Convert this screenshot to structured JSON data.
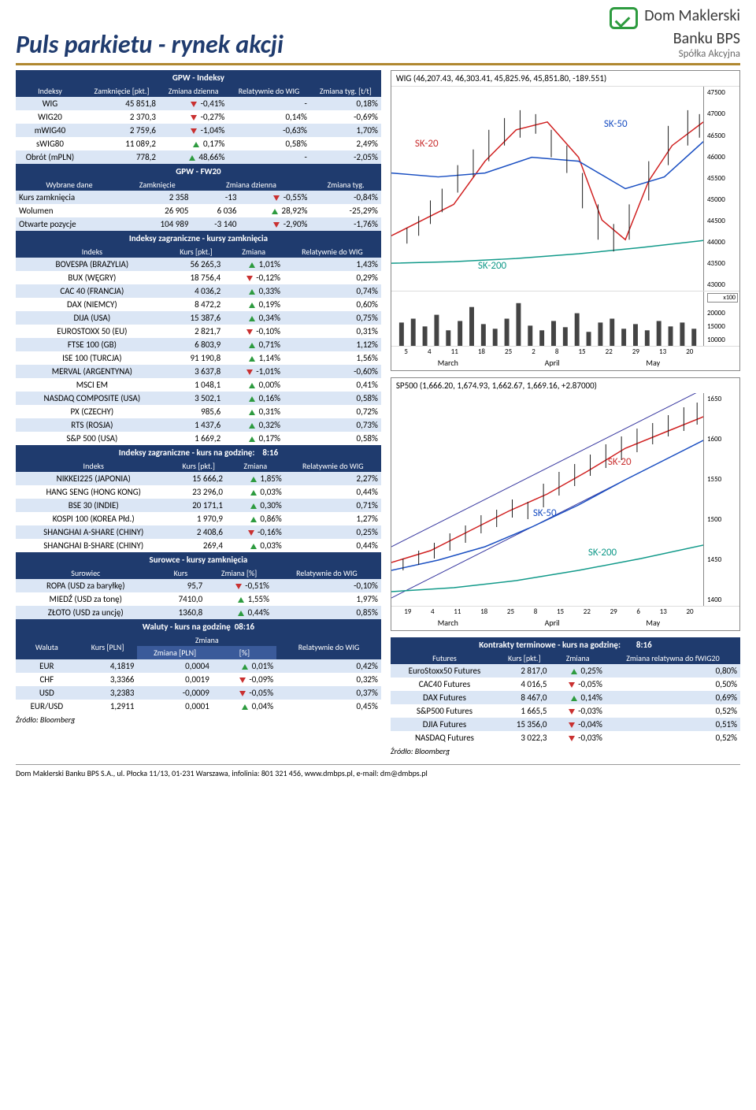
{
  "page": {
    "title": "Puls parkietu - rynek akcji",
    "logo_line1": "Dom Maklerski",
    "logo_line2": "Banku BPS",
    "logo_line3": "Spółka Akcyjna",
    "footer": "Dom Maklerski Banku BPS S.A., ul. Płocka 11/13, 01-231 Warszawa, infolinia: 801 321 456, www.dmbps.pl, e-mail: dm@dmbps.pl",
    "source": "Źródło: Bloomberg"
  },
  "colors": {
    "navy": "#1f3b6e",
    "stripe": "#dbe6f5",
    "gold": "#b08830",
    "up": "#2d9b3f",
    "dn": "#c93030"
  },
  "gpw_idx": {
    "title": "GPW - Indeksy",
    "headers": [
      "Indeksy",
      "Zamknięcie [pkt.]",
      "Zmiana dzienna",
      "Relatywnie do WIG",
      "Zmiana tyg. [t/t]"
    ],
    "rows": [
      {
        "name": "WIG",
        "close": "45 851,8",
        "dir": "dn",
        "chg": "-0,41%",
        "rel": "-",
        "wk": "0,18%"
      },
      {
        "name": "WIG20",
        "close": "2 370,3",
        "dir": "dn",
        "chg": "-0,27%",
        "rel": "0,14%",
        "wk": "-0,69%"
      },
      {
        "name": "mWIG40",
        "close": "2 759,6",
        "dir": "dn",
        "chg": "-1,04%",
        "rel": "-0,63%",
        "wk": "1,70%"
      },
      {
        "name": "sWIG80",
        "close": "11 089,2",
        "dir": "up",
        "chg": "0,17%",
        "rel": "0,58%",
        "wk": "2,49%"
      },
      {
        "name": "Obrót (mPLN)",
        "close": "778,2",
        "dir": "up",
        "chg": "48,66%",
        "rel": "-",
        "wk": "-2,05%"
      }
    ]
  },
  "fw20": {
    "title": "GPW - FW20",
    "headers": [
      "Wybrane dane",
      "Zamknięcie",
      "Zmiana dzienna",
      "",
      "Zmiana tyg."
    ],
    "rows": [
      {
        "name": "Kurs zamknięcia",
        "close": "2 358",
        "abs": "-13",
        "dir": "dn",
        "chg": "-0,55%",
        "wk": "-0,84%"
      },
      {
        "name": "Wolumen",
        "close": "26 905",
        "abs": "6 036",
        "dir": "up",
        "chg": "28,92%",
        "wk": "-25,29%"
      },
      {
        "name": "Otwarte pozycje",
        "close": "104 989",
        "abs": "-3 140",
        "dir": "dn",
        "chg": "-2,90%",
        "wk": "-1,76%"
      }
    ]
  },
  "foreign_close": {
    "title": "Indeksy zagraniczne - kursy zamknięcia",
    "headers": [
      "Indeks",
      "Kurs [pkt.]",
      "Zmiana",
      "Relatywnie do WIG"
    ],
    "rows": [
      {
        "name": "BOVESPA (BRAZYLIA)",
        "close": "56 265,3",
        "dir": "up",
        "chg": "1,01%",
        "rel": "1,43%"
      },
      {
        "name": "BUX (WĘGRY)",
        "close": "18 756,4",
        "dir": "dn",
        "chg": "-0,12%",
        "rel": "0,29%"
      },
      {
        "name": "CAC 40 (FRANCJA)",
        "close": "4 036,2",
        "dir": "up",
        "chg": "0,33%",
        "rel": "0,74%"
      },
      {
        "name": "DAX (NIEMCY)",
        "close": "8 472,2",
        "dir": "up",
        "chg": "0,19%",
        "rel": "0,60%"
      },
      {
        "name": "DIJA (USA)",
        "close": "15 387,6",
        "dir": "up",
        "chg": "0,34%",
        "rel": "0,75%"
      },
      {
        "name": "EUROSTOXX 50 (EU)",
        "close": "2 821,7",
        "dir": "dn",
        "chg": "-0,10%",
        "rel": "0,31%"
      },
      {
        "name": "FTSE 100 (GB)",
        "close": "6 803,9",
        "dir": "up",
        "chg": "0,71%",
        "rel": "1,12%"
      },
      {
        "name": "ISE 100 (TURCJA)",
        "close": "91 190,8",
        "dir": "up",
        "chg": "1,14%",
        "rel": "1,56%"
      },
      {
        "name": "MERVAL (ARGENTYNA)",
        "close": "3 637,8",
        "dir": "dn",
        "chg": "-1,01%",
        "rel": "-0,60%"
      },
      {
        "name": "MSCI EM",
        "close": "1 048,1",
        "dir": "up",
        "chg": "0,00%",
        "rel": "0,41%"
      },
      {
        "name": "NASDAQ COMPOSITE (USA)",
        "close": "3 502,1",
        "dir": "up",
        "chg": "0,16%",
        "rel": "0,58%"
      },
      {
        "name": "PX (CZECHY)",
        "close": "985,6",
        "dir": "up",
        "chg": "0,31%",
        "rel": "0,72%"
      },
      {
        "name": "RTS (ROSJA)",
        "close": "1 437,6",
        "dir": "up",
        "chg": "0,32%",
        "rel": "0,73%"
      },
      {
        "name": "S&P 500 (USA)",
        "close": "1 669,2",
        "dir": "up",
        "chg": "0,17%",
        "rel": "0,58%"
      }
    ]
  },
  "foreign_hour": {
    "title_prefix": "Indeksy zagraniczne - kurs na godzinę:",
    "time": "8:16",
    "headers": [
      "Indeks",
      "Kurs [pkt.]",
      "Zmiana",
      "Relatywnie do WIG"
    ],
    "rows": [
      {
        "name": "NIKKEI225 (JAPONIA)",
        "close": "15 666,2",
        "dir": "up",
        "chg": "1,85%",
        "rel": "2,27%"
      },
      {
        "name": "HANG SENG (HONG KONG)",
        "close": "23 296,0",
        "dir": "up",
        "chg": "0,03%",
        "rel": "0,44%"
      },
      {
        "name": "BSE 30 (INDIE)",
        "close": "20 171,1",
        "dir": "up",
        "chg": "0,30%",
        "rel": "0,71%"
      },
      {
        "name": "KOSPI 100 (KOREA Płd.)",
        "close": "1 970,9",
        "dir": "up",
        "chg": "0,86%",
        "rel": "1,27%"
      },
      {
        "name": "SHANGHAI A-SHARE (CHINY)",
        "close": "2 408,6",
        "dir": "dn",
        "chg": "-0,16%",
        "rel": "0,25%"
      },
      {
        "name": "SHANGHAI B-SHARE (CHINY)",
        "close": "269,4",
        "dir": "up",
        "chg": "0,03%",
        "rel": "0,44%"
      }
    ]
  },
  "commodities": {
    "title": "Surowce - kursy zamknięcia",
    "headers": [
      "Surowiec",
      "Kurs",
      "Zmiana [%]",
      "Relatywnie do WIG"
    ],
    "rows": [
      {
        "name": "ROPA (USD za baryłkę)",
        "close": "95,7",
        "dir": "dn",
        "chg": "-0,51%",
        "rel": "-0,10%"
      },
      {
        "name": "MIEDŹ (USD za tonę)",
        "close": "7410,0",
        "dir": "up",
        "chg": "1,55%",
        "rel": "1,97%"
      },
      {
        "name": "ZŁOTO (USD za uncję)",
        "close": "1360,8",
        "dir": "up",
        "chg": "0,44%",
        "rel": "0,85%"
      }
    ]
  },
  "fx": {
    "title_prefix": "Waluty - kurs na godzinę",
    "time": "08:16",
    "headers": [
      "Waluta",
      "Kurs [PLN]",
      "Zmiana [PLN]",
      "[%]",
      "Relatywnie do WIG"
    ],
    "rows": [
      {
        "name": "EUR",
        "close": "4,1819",
        "abs": "0,0004",
        "dir": "up",
        "chg": "0,01%",
        "rel": "0,42%"
      },
      {
        "name": "CHF",
        "close": "3,3366",
        "abs": "0,0019",
        "dir": "dn",
        "chg": "-0,09%",
        "rel": "0,32%"
      },
      {
        "name": "USD",
        "close": "3,2383",
        "abs": "-0,0009",
        "dir": "dn",
        "chg": "-0,05%",
        "rel": "0,37%"
      },
      {
        "name": "EUR/USD",
        "close": "1,2911",
        "abs": "0,0001",
        "dir": "up",
        "chg": "0,04%",
        "rel": "0,45%"
      }
    ]
  },
  "chart1": {
    "title": "WIG (46,207.43, 46,303.41, 45,825.96, 45,851.80, -189.551)",
    "yticks_price": [
      "47500",
      "47000",
      "46500",
      "46000",
      "45500",
      "45000",
      "44500",
      "44000",
      "43500",
      "43000"
    ],
    "yticks_vol": [
      "20000",
      "15000",
      "10000"
    ],
    "vol_label": "x100",
    "xticks": [
      "5",
      "4",
      "11",
      "18",
      "25",
      "2",
      "8",
      "15",
      "22",
      "29",
      "13",
      "20"
    ],
    "months": [
      "March",
      "April",
      "May"
    ],
    "annotations": {
      "sk20": "SK-20",
      "sk50": "SK-50",
      "sk200": "SK-200"
    },
    "line_colors": {
      "sk20": "#d02020",
      "sk50": "#1a4fc2",
      "sk200": "#129a8a",
      "candle": "#1a1a1a"
    }
  },
  "chart2": {
    "title": "SP500 (1,666.20, 1,674.93, 1,662.67, 1,669.16, +2.87000)",
    "yticks": [
      "1650",
      "1600",
      "1550",
      "1500",
      "1450",
      "1400"
    ],
    "xticks": [
      "19",
      "4",
      "11",
      "18",
      "25",
      "8",
      "15",
      "22",
      "29",
      "6",
      "13",
      "20"
    ],
    "months": [
      "March",
      "April",
      "May"
    ],
    "annotations": {
      "sk20": "SK-20",
      "sk50": "SK-50",
      "sk200": "SK-200"
    },
    "line_colors": {
      "sk20": "#d02020",
      "sk50": "#1a4fc2",
      "sk200": "#129a8a",
      "candle": "#1a1a1a",
      "channel": "#3838a0"
    }
  },
  "futures": {
    "title_prefix": "Kontrakty terminowe   - kurs na godzinę:",
    "time": "8:16",
    "headers": [
      "Futures",
      "Kurs [pkt.]",
      "Zmiana",
      "Zmiana relatywna do fWIG20"
    ],
    "rows": [
      {
        "name": "EuroStoxx50 Futures",
        "close": "2 817,0",
        "dir": "up",
        "chg": "0,25%",
        "rel": "0,80%"
      },
      {
        "name": "CAC40 Futures",
        "close": "4 016,5",
        "dir": "dn",
        "chg": "-0,05%",
        "rel": "0,50%"
      },
      {
        "name": "DAX Futures",
        "close": "8 467,0",
        "dir": "up",
        "chg": "0,14%",
        "rel": "0,69%"
      },
      {
        "name": "S&P500 Futures",
        "close": "1 665,5",
        "dir": "dn",
        "chg": "-0,03%",
        "rel": "0,52%"
      },
      {
        "name": "DJIA Futures",
        "close": "15 356,0",
        "dir": "dn",
        "chg": "-0,04%",
        "rel": "0,51%"
      },
      {
        "name": "NASDAQ Futures",
        "close": "3 022,3",
        "dir": "dn",
        "chg": "-0,03%",
        "rel": "0,52%"
      }
    ]
  }
}
